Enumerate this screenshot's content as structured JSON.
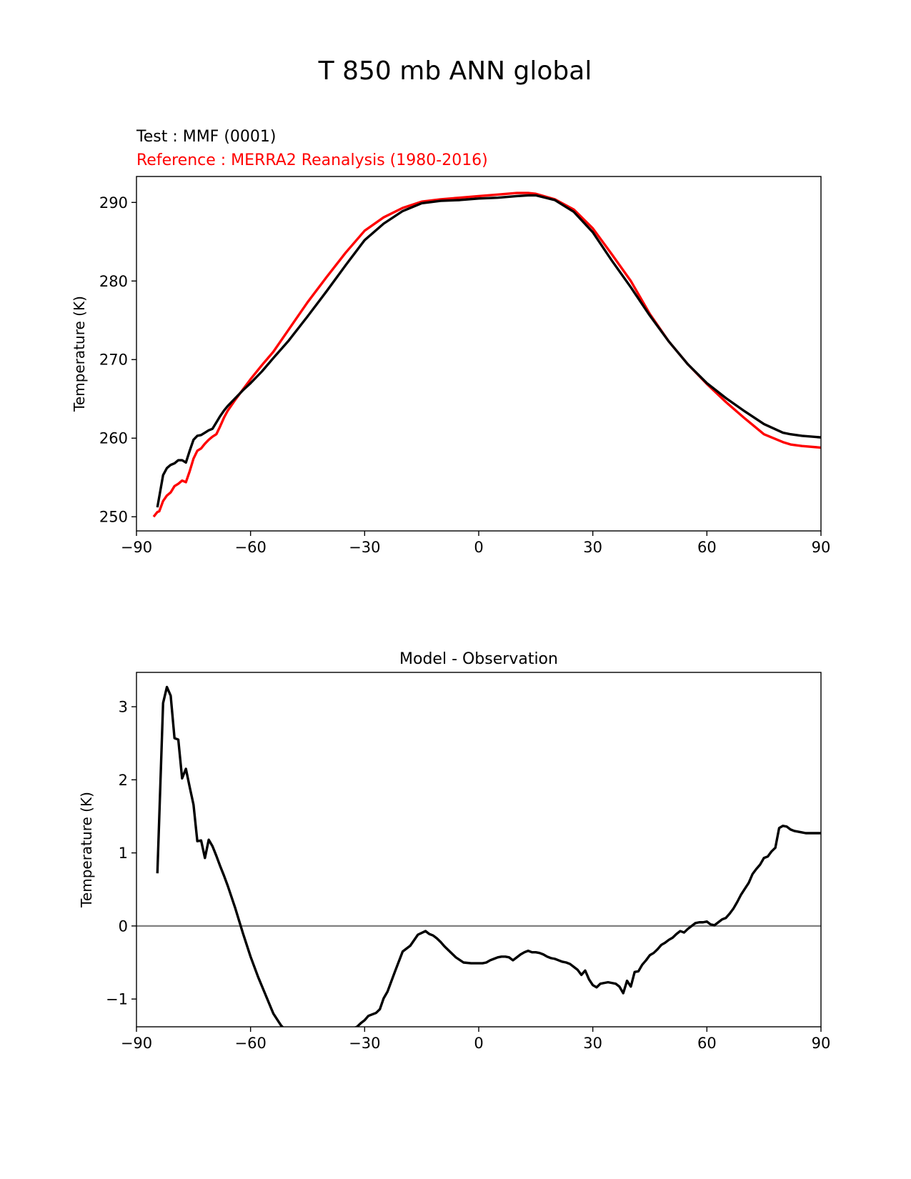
{
  "figure": {
    "suptitle": "T 850 mb ANN global"
  },
  "chart_data": [
    {
      "type": "line",
      "title_lines": [
        {
          "text": "Test : MMF (0001)",
          "color": "#000000"
        },
        {
          "text": "Reference : MERRA2 Reanalysis (1980-2016)",
          "color": "#ff0000"
        }
      ],
      "xlabel": "",
      "ylabel": "Temperature (K)",
      "xlim": [
        -90,
        90
      ],
      "ylim": [
        248.2,
        293.3
      ],
      "xticks": [
        -90,
        -60,
        -30,
        0,
        30,
        60,
        90
      ],
      "xtick_labels": [
        "−90",
        "−60",
        "−30",
        "0",
        "30",
        "60",
        "90"
      ],
      "yticks": [
        250,
        260,
        270,
        280,
        290
      ],
      "ytick_labels": [
        "250",
        "260",
        "270",
        "280",
        "290"
      ],
      "series": [
        {
          "color": "#ff0000",
          "x": [
            -85.5,
            -84.5,
            -84,
            -83,
            -82,
            -81,
            -80,
            -79,
            -78,
            -77,
            -76,
            -75,
            -74,
            -73,
            -72,
            -71,
            -70,
            -69,
            -68,
            -67,
            -66,
            -64,
            -62,
            -60,
            -57,
            -54,
            -50,
            -45,
            -40,
            -35,
            -30,
            -25,
            -20,
            -15,
            -10,
            -5,
            0,
            5,
            10,
            13,
            15,
            20,
            25,
            30,
            35,
            40,
            45,
            50,
            55,
            60,
            65,
            70,
            75,
            80,
            82,
            85,
            90
          ],
          "y": [
            250.0,
            250.6,
            250.7,
            252.0,
            252.7,
            253.1,
            253.9,
            254.2,
            254.6,
            254.4,
            255.8,
            257.4,
            258.4,
            258.7,
            259.3,
            259.8,
            260.2,
            260.5,
            261.5,
            262.6,
            263.5,
            264.9,
            266.2,
            267.5,
            269.3,
            271.0,
            273.8,
            277.3,
            280.5,
            283.6,
            286.4,
            288.1,
            289.3,
            290.1,
            290.4,
            290.6,
            290.8,
            291.0,
            291.2,
            291.2,
            291.1,
            290.4,
            289.1,
            286.7,
            283.4,
            280.0,
            275.8,
            272.3,
            269.4,
            266.9,
            264.6,
            262.5,
            260.5,
            259.5,
            259.2,
            259.0,
            258.8
          ]
        },
        {
          "color": "#000000",
          "x": [
            -84.5,
            -83,
            -82,
            -81,
            -80,
            -79,
            -78,
            -77,
            -76,
            -75,
            -74,
            -73,
            -72,
            -71,
            -70,
            -69,
            -68,
            -67,
            -66,
            -64,
            -62,
            -60,
            -57,
            -54,
            -50,
            -45,
            -40,
            -35,
            -30,
            -25,
            -20,
            -15,
            -10,
            -5,
            0,
            5,
            10,
            13,
            15,
            20,
            25,
            30,
            35,
            40,
            45,
            50,
            55,
            60,
            65,
            70,
            75,
            80,
            82,
            85,
            90
          ],
          "y": [
            251.2,
            255.3,
            256.2,
            256.6,
            256.8,
            257.2,
            257.2,
            256.9,
            258.4,
            259.8,
            260.3,
            260.4,
            260.7,
            261.0,
            261.2,
            262.0,
            262.8,
            263.5,
            264.1,
            265.1,
            266.1,
            267.0,
            268.5,
            270.2,
            272.4,
            275.5,
            278.7,
            282.0,
            285.2,
            287.3,
            288.9,
            289.9,
            290.2,
            290.3,
            290.5,
            290.6,
            290.8,
            290.9,
            290.9,
            290.3,
            288.8,
            286.2,
            282.6,
            279.2,
            275.6,
            272.3,
            269.4,
            267.0,
            265.1,
            263.4,
            261.8,
            260.7,
            260.5,
            260.3,
            260.1
          ]
        }
      ]
    },
    {
      "type": "line",
      "title_lines": [
        {
          "text": "Model - Observation",
          "color": "#000000"
        }
      ],
      "xlabel": "",
      "ylabel": "Temperature (K)",
      "xlim": [
        -90,
        90
      ],
      "ylim": [
        -1.38,
        3.47
      ],
      "xticks": [
        -90,
        -60,
        -30,
        0,
        30,
        60,
        90
      ],
      "xtick_labels": [
        "−90",
        "−60",
        "−30",
        "0",
        "30",
        "60",
        "90"
      ],
      "yticks": [
        -1,
        0,
        1,
        2,
        3
      ],
      "ytick_labels": [
        "−1",
        "0",
        "1",
        "2",
        "3"
      ],
      "zero_line": {
        "y": 0,
        "color": "#808080"
      },
      "series": [
        {
          "color": "#000000",
          "x": [
            -84.5,
            -83,
            -82,
            -81,
            -80,
            -79,
            -78,
            -77,
            -76,
            -75,
            -74,
            -73,
            -72,
            -71,
            -70,
            -69,
            -68,
            -67,
            -66,
            -64,
            -62,
            -60,
            -58,
            -56,
            -54,
            -52,
            -50,
            -48,
            -46,
            -44,
            -42,
            -41,
            -40,
            -39,
            -38,
            -36,
            -34,
            -33,
            -32,
            -31,
            -30,
            -29,
            -27,
            -26,
            -25,
            -24,
            -22,
            -20,
            -18,
            -16,
            -14,
            -13,
            -12,
            -11,
            -10,
            -9,
            -8,
            -6,
            -4,
            -2,
            0,
            1,
            2,
            3,
            4,
            5,
            6,
            7,
            8,
            9,
            10,
            11,
            12,
            13,
            14,
            15,
            16,
            17,
            18,
            19,
            20,
            21,
            22,
            23,
            24,
            25,
            26,
            27,
            28,
            29,
            30,
            31,
            32,
            33,
            34,
            35,
            36,
            37,
            38,
            39,
            40,
            41,
            42,
            43,
            44,
            45,
            46,
            47,
            48,
            49,
            50,
            51,
            52,
            53,
            54,
            55,
            56,
            57,
            58,
            59,
            60,
            61,
            62,
            63,
            64,
            65,
            66,
            67,
            68,
            69,
            70,
            71,
            72,
            73,
            74,
            75,
            76,
            77,
            78,
            79,
            80,
            81,
            82,
            83,
            84,
            85,
            86,
            87,
            88,
            89,
            90
          ],
          "y": [
            0.72,
            3.05,
            3.27,
            3.15,
            2.57,
            2.55,
            2.02,
            2.15,
            1.9,
            1.66,
            1.16,
            1.17,
            0.93,
            1.18,
            1.09,
            0.96,
            0.82,
            0.69,
            0.55,
            0.24,
            -0.1,
            -0.42,
            -0.7,
            -0.95,
            -1.2,
            -1.36,
            -1.47,
            -1.42,
            -1.55,
            -1.67,
            -1.67,
            -1.67,
            -1.66,
            -1.64,
            -1.6,
            -1.55,
            -1.47,
            -1.4,
            -1.38,
            -1.33,
            -1.29,
            -1.23,
            -1.19,
            -1.14,
            -0.99,
            -0.9,
            -0.62,
            -0.35,
            -0.27,
            -0.12,
            -0.07,
            -0.11,
            -0.13,
            -0.17,
            -0.22,
            -0.28,
            -0.33,
            -0.43,
            -0.5,
            -0.51,
            -0.51,
            -0.51,
            -0.5,
            -0.47,
            -0.45,
            -0.43,
            -0.42,
            -0.42,
            -0.43,
            -0.47,
            -0.43,
            -0.39,
            -0.36,
            -0.34,
            -0.36,
            -0.36,
            -0.37,
            -0.39,
            -0.42,
            -0.44,
            -0.45,
            -0.47,
            -0.49,
            -0.5,
            -0.52,
            -0.56,
            -0.6,
            -0.67,
            -0.61,
            -0.73,
            -0.81,
            -0.84,
            -0.79,
            -0.78,
            -0.77,
            -0.78,
            -0.79,
            -0.83,
            -0.92,
            -0.75,
            -0.83,
            -0.63,
            -0.62,
            -0.53,
            -0.47,
            -0.4,
            -0.37,
            -0.32,
            -0.26,
            -0.23,
            -0.19,
            -0.16,
            -0.11,
            -0.07,
            -0.09,
            -0.04,
            0.0,
            0.04,
            0.05,
            0.05,
            0.06,
            0.02,
            0.01,
            0.05,
            0.09,
            0.11,
            0.17,
            0.24,
            0.33,
            0.43,
            0.51,
            0.59,
            0.71,
            0.78,
            0.84,
            0.93,
            0.95,
            1.02,
            1.07,
            1.34,
            1.37,
            1.36,
            1.32,
            1.3,
            1.29,
            1.28,
            1.27,
            1.27,
            1.27,
            1.27,
            1.27
          ]
        }
      ]
    }
  ]
}
